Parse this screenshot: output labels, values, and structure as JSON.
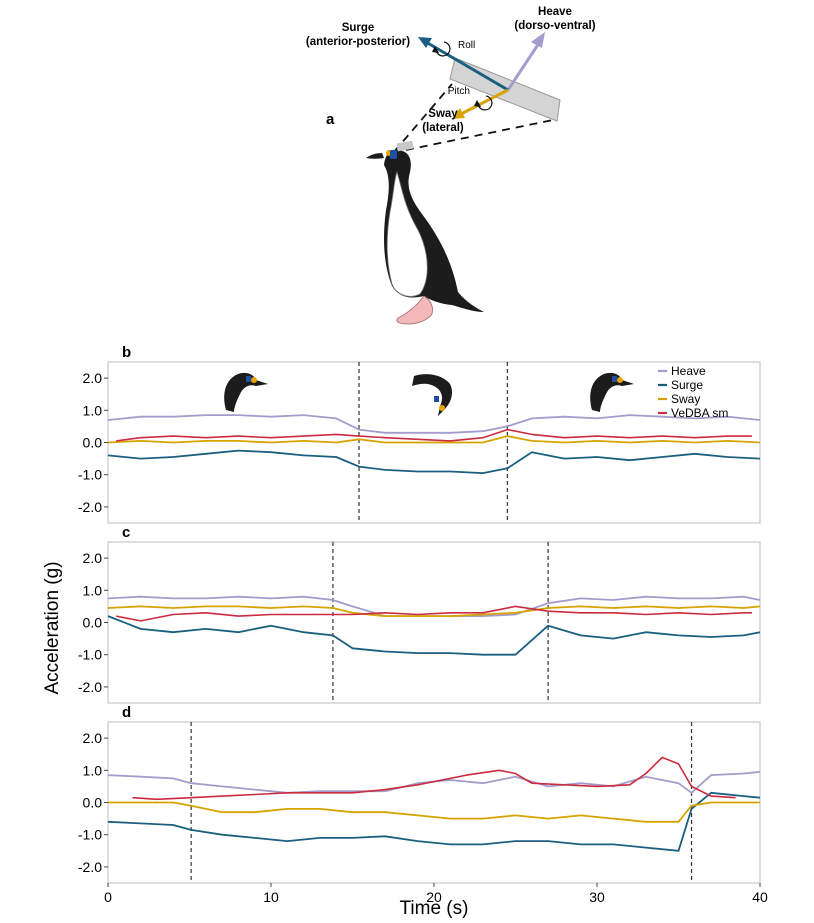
{
  "diagram": {
    "panel_label": "a",
    "surge_label_1": "Surge",
    "surge_label_2": "(anterior-posterior)",
    "heave_label_1": "Heave",
    "heave_label_2": "(dorso-ventral)",
    "sway_label_1": "Sway",
    "sway_label_2": "(lateral)",
    "roll_label": "Roll",
    "pitch_label": "Pitch"
  },
  "figure": {
    "ylabel": "Acceleration (g)",
    "xlabel": "Time (s)",
    "colors": {
      "heave": "#a49ccc",
      "surge": "#1a5f80",
      "sway": "#d6a300",
      "vedba": "#cc2a3f",
      "frame": "#bdbdbd",
      "dashed": "#333333"
    }
  },
  "chart_data": [
    {
      "type": "line",
      "panel": "b",
      "title": "",
      "xlim": [
        0,
        40
      ],
      "ylim": [
        -2.5,
        2.5
      ],
      "yticks": [
        -2.0,
        -1.0,
        0.0,
        1.0,
        2.0
      ],
      "ytick_labels": [
        "-2.0",
        "-1.0",
        "0.0",
        "1.0",
        "2.0"
      ],
      "legend_position": "top-right",
      "legend": [
        "Heave",
        "Surge",
        "Sway",
        "VeDBA sm"
      ],
      "event_lines_x": [
        15.4,
        24.5
      ],
      "series": [
        {
          "name": "Heave",
          "x": [
            0,
            2,
            4,
            6,
            8,
            10,
            12,
            14,
            15.4,
            17,
            19,
            21,
            23,
            24.5,
            26,
            28,
            30,
            32,
            34,
            36,
            38,
            40
          ],
          "y": [
            0.7,
            0.8,
            0.8,
            0.85,
            0.85,
            0.8,
            0.85,
            0.75,
            0.4,
            0.3,
            0.3,
            0.3,
            0.35,
            0.5,
            0.75,
            0.8,
            0.75,
            0.85,
            0.8,
            0.75,
            0.8,
            0.7
          ]
        },
        {
          "name": "Surge",
          "x": [
            0,
            2,
            4,
            6,
            8,
            10,
            12,
            14,
            15.4,
            17,
            19,
            21,
            23,
            24.5,
            26,
            28,
            30,
            32,
            34,
            36,
            38,
            40
          ],
          "y": [
            -0.4,
            -0.5,
            -0.45,
            -0.35,
            -0.25,
            -0.3,
            -0.4,
            -0.45,
            -0.75,
            -0.85,
            -0.9,
            -0.9,
            -0.95,
            -0.8,
            -0.3,
            -0.5,
            -0.45,
            -0.55,
            -0.45,
            -0.35,
            -0.45,
            -0.5
          ]
        },
        {
          "name": "Sway",
          "x": [
            0,
            2,
            4,
            6,
            8,
            10,
            12,
            14,
            15.4,
            17,
            19,
            21,
            23,
            24.5,
            26,
            28,
            30,
            32,
            34,
            36,
            38,
            40
          ],
          "y": [
            0.0,
            0.05,
            0.0,
            0.05,
            0.05,
            0.0,
            0.05,
            0.0,
            0.1,
            0.0,
            0.0,
            0.0,
            0.0,
            0.2,
            0.05,
            0.0,
            0.05,
            0.0,
            0.05,
            0.0,
            0.05,
            0.0
          ]
        },
        {
          "name": "VeDBA sm",
          "x": [
            0.5,
            2,
            4,
            6,
            8,
            10,
            12,
            14,
            15.4,
            17,
            19,
            21,
            23,
            24.5,
            26,
            28,
            30,
            32,
            34,
            36,
            38,
            39.5
          ],
          "y": [
            0.05,
            0.15,
            0.2,
            0.15,
            0.2,
            0.15,
            0.2,
            0.25,
            0.2,
            0.15,
            0.1,
            0.05,
            0.15,
            0.4,
            0.25,
            0.15,
            0.2,
            0.15,
            0.2,
            0.15,
            0.2,
            0.2
          ]
        }
      ]
    },
    {
      "type": "line",
      "panel": "c",
      "title": "",
      "xlim": [
        0,
        40
      ],
      "ylim": [
        -2.5,
        2.5
      ],
      "yticks": [
        -2.0,
        -1.0,
        0.0,
        1.0,
        2.0
      ],
      "ytick_labels": [
        "-2.0",
        "-1.0",
        "0.0",
        "1.0",
        "2.0"
      ],
      "event_lines_x": [
        13.8,
        27.0
      ],
      "series": [
        {
          "name": "Heave",
          "x": [
            0,
            2,
            4,
            6,
            8,
            10,
            12,
            13.8,
            15,
            17,
            19,
            21,
            23,
            25,
            27,
            29,
            31,
            33,
            35,
            37,
            39,
            40
          ],
          "y": [
            0.75,
            0.8,
            0.75,
            0.75,
            0.8,
            0.75,
            0.8,
            0.7,
            0.5,
            0.2,
            0.2,
            0.2,
            0.2,
            0.25,
            0.6,
            0.75,
            0.7,
            0.8,
            0.75,
            0.75,
            0.8,
            0.7
          ]
        },
        {
          "name": "Surge",
          "x": [
            0,
            2,
            4,
            6,
            8,
            10,
            12,
            13.8,
            15,
            17,
            19,
            21,
            23,
            25,
            27,
            29,
            31,
            33,
            35,
            37,
            39,
            40
          ],
          "y": [
            0.2,
            -0.2,
            -0.3,
            -0.2,
            -0.3,
            -0.1,
            -0.3,
            -0.4,
            -0.8,
            -0.9,
            -0.95,
            -0.95,
            -1.0,
            -1.0,
            -0.1,
            -0.4,
            -0.5,
            -0.3,
            -0.4,
            -0.45,
            -0.4,
            -0.3
          ]
        },
        {
          "name": "Sway",
          "x": [
            0,
            2,
            4,
            6,
            8,
            10,
            12,
            13.8,
            15,
            17,
            19,
            21,
            23,
            25,
            27,
            29,
            31,
            33,
            35,
            37,
            39,
            40
          ],
          "y": [
            0.45,
            0.5,
            0.45,
            0.5,
            0.5,
            0.45,
            0.5,
            0.45,
            0.3,
            0.2,
            0.2,
            0.2,
            0.25,
            0.3,
            0.45,
            0.5,
            0.45,
            0.5,
            0.45,
            0.5,
            0.45,
            0.5
          ]
        },
        {
          "name": "VeDBA sm",
          "x": [
            0.5,
            2,
            4,
            6,
            8,
            10,
            12,
            13.8,
            15,
            17,
            19,
            21,
            23,
            25,
            27,
            29,
            31,
            33,
            35,
            37,
            39,
            39.5
          ],
          "y": [
            0.2,
            0.05,
            0.25,
            0.3,
            0.2,
            0.25,
            0.25,
            0.25,
            0.25,
            0.3,
            0.25,
            0.3,
            0.3,
            0.5,
            0.35,
            0.3,
            0.3,
            0.25,
            0.3,
            0.25,
            0.3,
            0.3
          ]
        }
      ]
    },
    {
      "type": "line",
      "panel": "d",
      "title": "",
      "xlabel": "Time (s)",
      "xlim": [
        0,
        40
      ],
      "ylim": [
        -2.5,
        2.5
      ],
      "xticks": [
        0,
        10,
        20,
        30,
        40
      ],
      "xtick_labels": [
        "0",
        "10",
        "20",
        "30",
        "40"
      ],
      "yticks": [
        -2.0,
        -1.0,
        0.0,
        1.0,
        2.0
      ],
      "ytick_labels": [
        "-2.0",
        "-1.0",
        "0.0",
        "1.0",
        "2.0"
      ],
      "event_lines_x": [
        5.1,
        35.8
      ],
      "series": [
        {
          "name": "Heave",
          "x": [
            0,
            2,
            4,
            5.1,
            7,
            9,
            11,
            13,
            15,
            17,
            19,
            21,
            23,
            25,
            27,
            29,
            31,
            33,
            35,
            35.8,
            37,
            39,
            40
          ],
          "y": [
            0.85,
            0.8,
            0.75,
            0.6,
            0.5,
            0.4,
            0.3,
            0.35,
            0.35,
            0.35,
            0.6,
            0.7,
            0.6,
            0.8,
            0.5,
            0.6,
            0.5,
            0.8,
            0.6,
            0.3,
            0.85,
            0.9,
            0.95
          ]
        },
        {
          "name": "Surge",
          "x": [
            0,
            2,
            4,
            5.1,
            7,
            9,
            11,
            13,
            15,
            17,
            19,
            21,
            23,
            25,
            27,
            29,
            31,
            33,
            35,
            35.8,
            37,
            39,
            40
          ],
          "y": [
            -0.6,
            -0.65,
            -0.7,
            -0.85,
            -1.0,
            -1.1,
            -1.2,
            -1.1,
            -1.1,
            -1.05,
            -1.2,
            -1.3,
            -1.3,
            -1.2,
            -1.2,
            -1.3,
            -1.3,
            -1.4,
            -1.5,
            -0.2,
            0.3,
            0.2,
            0.15
          ]
        },
        {
          "name": "Sway",
          "x": [
            0,
            2,
            4,
            5.1,
            7,
            9,
            11,
            13,
            15,
            17,
            19,
            21,
            23,
            25,
            27,
            29,
            31,
            33,
            35,
            35.8,
            37,
            39,
            40
          ],
          "y": [
            0.0,
            0.0,
            0.0,
            -0.1,
            -0.3,
            -0.3,
            -0.2,
            -0.2,
            -0.3,
            -0.3,
            -0.4,
            -0.5,
            -0.5,
            -0.4,
            -0.5,
            -0.4,
            -0.5,
            -0.6,
            -0.6,
            -0.1,
            0.0,
            0.0,
            0.0
          ]
        },
        {
          "name": "VeDBA sm",
          "x": [
            1.5,
            3,
            5.1,
            7,
            9,
            11,
            13,
            15,
            17,
            19,
            20,
            22,
            24,
            25,
            26,
            28,
            30,
            32,
            33,
            34,
            35,
            35.8,
            37,
            38.5
          ],
          "y": [
            0.15,
            0.1,
            0.15,
            0.2,
            0.25,
            0.3,
            0.3,
            0.3,
            0.4,
            0.55,
            0.65,
            0.85,
            1.0,
            0.9,
            0.6,
            0.55,
            0.5,
            0.55,
            0.9,
            1.4,
            1.2,
            0.5,
            0.2,
            0.15
          ]
        }
      ]
    }
  ]
}
